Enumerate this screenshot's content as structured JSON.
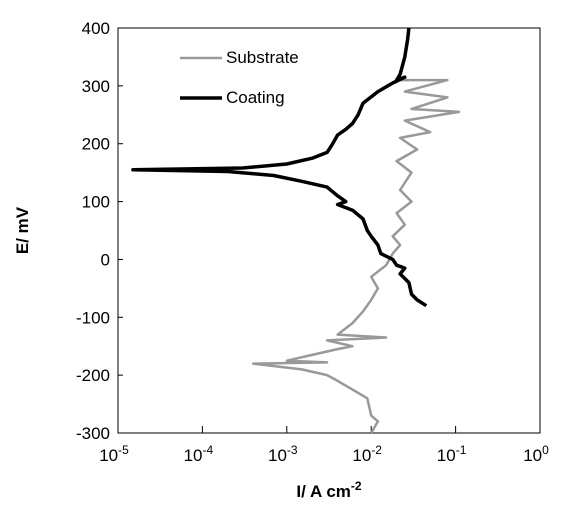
{
  "chart_data": {
    "type": "line",
    "x_label": "I/ A cm-2",
    "y_label": "E/ mV",
    "xscale": "log",
    "xlim": [
      1e-05,
      1
    ],
    "ylim": [
      -300,
      400
    ],
    "xticks": [
      {
        "value": 1e-05,
        "label": "10-5"
      },
      {
        "value": 0.0001,
        "label": "10-4"
      },
      {
        "value": 0.001,
        "label": "10-3"
      },
      {
        "value": 0.01,
        "label": "10-2"
      },
      {
        "value": 0.1,
        "label": "10-1"
      },
      {
        "value": 1,
        "label": "100"
      }
    ],
    "yticks": [
      -300,
      -200,
      -100,
      0,
      100,
      200,
      300,
      400
    ],
    "legend": "upper left",
    "series": [
      {
        "name": "Substrate",
        "color": "#999999",
        "x": [
          0.01,
          0.012,
          0.01,
          0.009,
          0.006,
          0.004,
          0.003,
          0.0015,
          0.0004,
          0.003,
          0.001,
          0.002,
          0.004,
          0.006,
          0.003,
          0.015,
          0.004,
          0.006,
          0.008,
          0.01,
          0.012,
          0.01,
          0.015,
          0.018,
          0.022,
          0.018,
          0.025,
          0.02,
          0.03,
          0.022,
          0.03,
          0.02,
          0.035,
          0.022,
          0.05,
          0.025,
          0.11,
          0.03,
          0.08,
          0.025,
          0.08,
          0.022
        ],
        "values": [
          -300,
          -280,
          -270,
          -240,
          -225,
          -210,
          -200,
          -190,
          -180,
          -178,
          -175,
          -165,
          -155,
          -150,
          -140,
          -135,
          -130,
          -110,
          -90,
          -70,
          -50,
          -30,
          -10,
          10,
          25,
          40,
          60,
          80,
          100,
          120,
          150,
          170,
          190,
          210,
          220,
          240,
          255,
          260,
          280,
          290,
          310,
          310
        ]
      },
      {
        "name": "Coating",
        "color": "#000000",
        "x": [
          0.028,
          0.027,
          0.025,
          0.022,
          0.02,
          0.025,
          0.018,
          0.012,
          0.008,
          0.007,
          0.006,
          0.005,
          0.004,
          0.0035,
          0.003,
          0.002,
          0.001,
          0.0003,
          1.5e-05,
          0.0002,
          0.0007,
          0.0015,
          0.003,
          0.004,
          0.005,
          0.004,
          0.006,
          0.008,
          0.009,
          0.01,
          0.012,
          0.013,
          0.018,
          0.02,
          0.025,
          0.022,
          0.028,
          0.03,
          0.035,
          0.045
        ],
        "values": [
          400,
          380,
          350,
          320,
          310,
          315,
          305,
          290,
          270,
          250,
          235,
          225,
          215,
          200,
          185,
          175,
          165,
          158,
          155,
          152,
          145,
          135,
          125,
          110,
          100,
          95,
          85,
          70,
          50,
          40,
          25,
          10,
          0,
          -10,
          -15,
          -25,
          -40,
          -60,
          -70,
          -80
        ]
      }
    ]
  }
}
